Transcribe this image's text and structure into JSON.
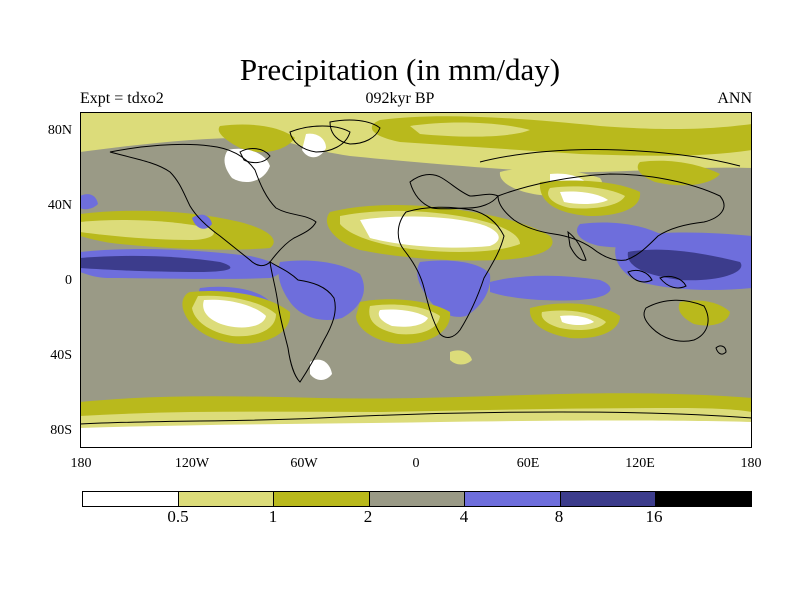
{
  "title": "Precipitation (in mm/day)",
  "subtitle_left": "Expt = tdxo2",
  "subtitle_center": "092kyr BP",
  "subtitle_right": "ANN",
  "lat_labels": [
    "80N",
    "40N",
    "0",
    "40S",
    "80S"
  ],
  "lon_labels": [
    "180",
    "120W",
    "60W",
    "0",
    "60E",
    "120E",
    "180"
  ],
  "colorbar": {
    "levels": [
      "0.5",
      "1",
      "2",
      "4",
      "8",
      "16"
    ],
    "colors": [
      "#ffffff",
      "#dcdc7a",
      "#b9b91c",
      "#9a9a86",
      "#6e6edc",
      "#3c3c8c",
      "#000000"
    ]
  },
  "colors": {
    "coastline": "#000000"
  }
}
